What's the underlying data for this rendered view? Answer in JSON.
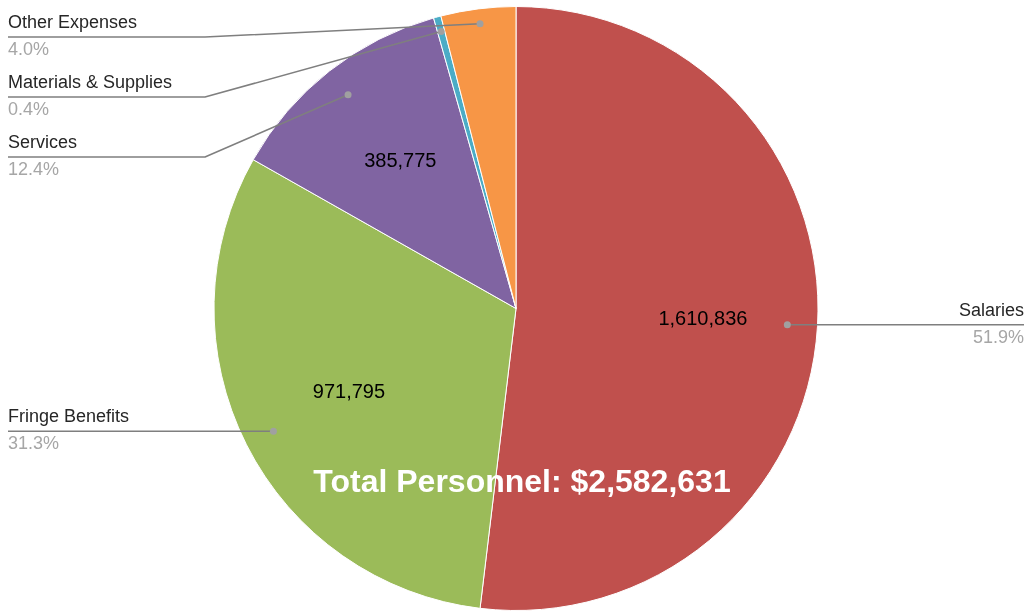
{
  "chart_data": {
    "type": "pie",
    "categories": [
      "Salaries",
      "Fringe Benefits",
      "Services",
      "Materials & Supplies",
      "Other Expenses"
    ],
    "values": [
      51.9,
      31.3,
      12.4,
      0.4,
      4.0
    ],
    "colors": [
      "#c0504d",
      "#9bbb59",
      "#8064a2",
      "#4bacc6",
      "#f79646"
    ],
    "value_labels": [
      "51.9%",
      "31.3%",
      "12.4%",
      "0.4%",
      "4.0%"
    ],
    "annotations": [
      {
        "text": "1,610,836",
        "x": "Salaries"
      },
      {
        "text": "971,795",
        "x": "Fringe Benefits"
      },
      {
        "text": "385,775",
        "x": "Services"
      },
      "Total Personnel: $2,582,631"
    ]
  }
}
